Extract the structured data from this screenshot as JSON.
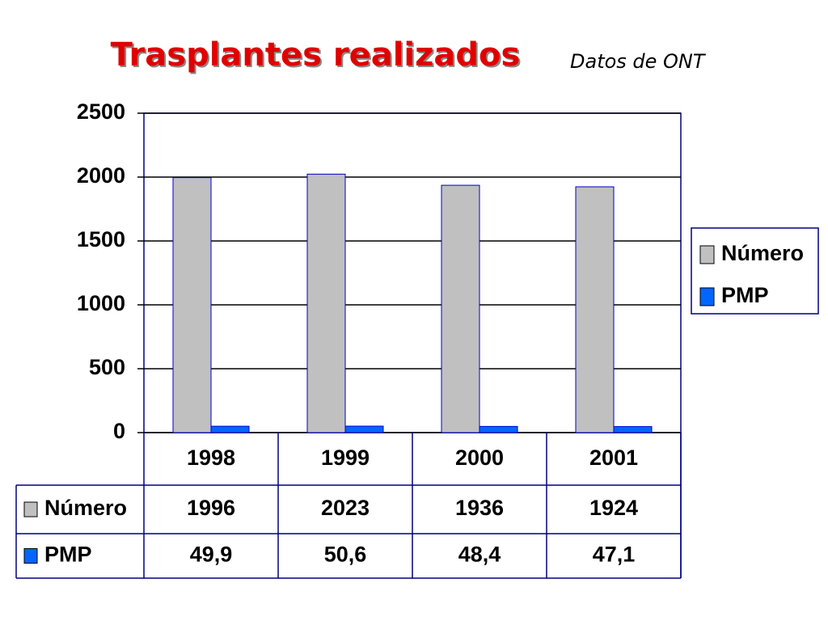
{
  "chart_data": {
    "type": "bar",
    "title": "Trasplantes realizados",
    "subtitle": "Datos de ONT",
    "categories": [
      "1998",
      "1999",
      "2000",
      "2001"
    ],
    "series": [
      {
        "name": "Número",
        "color": "#c0c0c0",
        "values": [
          1996,
          2023,
          1936,
          1924
        ]
      },
      {
        "name": "PMP",
        "color": "#0066ff",
        "values": [
          49.9,
          50.6,
          48.4,
          47.1
        ],
        "value_labels": [
          "49,9",
          "50,6",
          "48,4",
          "47,1"
        ]
      }
    ],
    "ylim": [
      0,
      2500
    ],
    "yticks": [
      0,
      500,
      1000,
      1500,
      2000,
      2500
    ],
    "grid": true,
    "legend": "right"
  }
}
